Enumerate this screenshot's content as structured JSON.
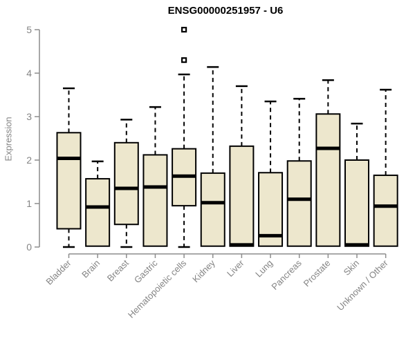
{
  "chart_data": {
    "type": "boxplot",
    "title": "ENSG00000251957 - U6",
    "xlabel": "",
    "ylabel": "Expression",
    "ylim": [
      0,
      5
    ],
    "yticks": [
      0,
      1,
      2,
      3,
      4,
      5
    ],
    "grid": false,
    "legend": "none",
    "categories": [
      "Bladder",
      "Brain",
      "Breast",
      "Gastric",
      "Hematopoietic cells",
      "Kidney",
      "Liver",
      "Lung",
      "Pancreas",
      "Prostate",
      "Skin",
      "Unknown / Other"
    ],
    "series": [
      {
        "category": "Bladder",
        "whisker_low": 0,
        "q1": 0.42,
        "median": 2.04,
        "q3": 2.63,
        "whisker_high": 3.65,
        "outliers": []
      },
      {
        "category": "Brain",
        "whisker_low": 0,
        "q1": 0.02,
        "median": 0.92,
        "q3": 1.57,
        "whisker_high": 1.97,
        "outliers": []
      },
      {
        "category": "Breast",
        "whisker_low": 0,
        "q1": 0.52,
        "median": 1.35,
        "q3": 2.4,
        "whisker_high": 2.93,
        "outliers": []
      },
      {
        "category": "Gastric",
        "whisker_low": 0,
        "q1": 0.02,
        "median": 1.38,
        "q3": 2.12,
        "whisker_high": 3.22,
        "outliers": []
      },
      {
        "category": "Hematopoietic cells",
        "whisker_low": 0,
        "q1": 0.95,
        "median": 1.63,
        "q3": 2.26,
        "whisker_high": 3.97,
        "outliers": [
          4.3,
          5.0
        ]
      },
      {
        "category": "Kidney",
        "whisker_low": 0,
        "q1": 0.02,
        "median": 1.02,
        "q3": 1.7,
        "whisker_high": 4.14,
        "outliers": []
      },
      {
        "category": "Liver",
        "whisker_low": 0,
        "q1": 0.02,
        "median": 0.05,
        "q3": 2.32,
        "whisker_high": 3.7,
        "outliers": []
      },
      {
        "category": "Lung",
        "whisker_low": 0,
        "q1": 0.02,
        "median": 0.26,
        "q3": 1.71,
        "whisker_high": 3.35,
        "outliers": []
      },
      {
        "category": "Pancreas",
        "whisker_low": 0,
        "q1": 0.02,
        "median": 1.1,
        "q3": 1.98,
        "whisker_high": 3.41,
        "outliers": []
      },
      {
        "category": "Prostate",
        "whisker_low": 0,
        "q1": 0.02,
        "median": 2.27,
        "q3": 3.06,
        "whisker_high": 3.84,
        "outliers": []
      },
      {
        "category": "Skin",
        "whisker_low": 0,
        "q1": 0.02,
        "median": 0.05,
        "q3": 2.0,
        "whisker_high": 2.84,
        "outliers": []
      },
      {
        "category": "Unknown / Other",
        "whisker_low": 0,
        "q1": 0.02,
        "median": 0.94,
        "q3": 1.65,
        "whisker_high": 3.62,
        "outliers": []
      }
    ],
    "colors": {
      "box_fill": "#EDE7CD",
      "box_stroke": "#000000",
      "median": "#000000",
      "whisker": "#000000",
      "axis": "#8c8c8c",
      "tick_label": "#848484",
      "title": "#000000",
      "background": "#ffffff"
    }
  }
}
